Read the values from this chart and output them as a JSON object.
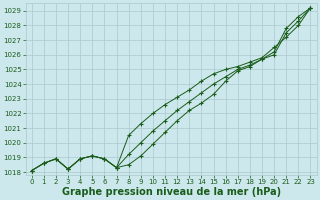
{
  "background_color": "#cde8ed",
  "grid_color": "#aac8cc",
  "line_color": "#1a5c1a",
  "xlabel": "Graphe pression niveau de la mer (hPa)",
  "xlabel_fontsize": 7,
  "yticks": [
    1018,
    1019,
    1020,
    1021,
    1022,
    1023,
    1024,
    1025,
    1026,
    1027,
    1028,
    1029
  ],
  "ylim": [
    1017.8,
    1029.5
  ],
  "xlim": [
    -0.5,
    23.5
  ],
  "xticks": [
    0,
    1,
    2,
    3,
    4,
    5,
    6,
    7,
    8,
    9,
    10,
    11,
    12,
    13,
    14,
    15,
    16,
    17,
    18,
    19,
    20,
    21,
    22,
    23
  ],
  "line1_x": [
    0,
    1,
    2,
    3,
    4,
    5,
    6,
    7,
    8,
    9,
    10,
    11,
    12,
    13,
    14,
    15,
    16,
    17,
    18,
    19,
    20,
    21,
    22,
    23
  ],
  "line1_y": [
    1018.1,
    1018.6,
    1018.9,
    1018.2,
    1018.9,
    1019.1,
    1018.9,
    1018.3,
    1018.5,
    1019.1,
    1019.9,
    1020.7,
    1021.5,
    1022.2,
    1022.7,
    1023.3,
    1024.2,
    1024.9,
    1025.2,
    1025.7,
    1026.0,
    1027.5,
    1028.3,
    1029.2
  ],
  "line2_x": [
    0,
    1,
    2,
    3,
    4,
    5,
    6,
    7,
    8,
    9,
    10,
    11,
    12,
    13,
    14,
    15,
    16,
    17,
    18,
    19,
    20,
    21,
    22,
    23
  ],
  "line2_y": [
    1018.1,
    1018.6,
    1018.9,
    1018.2,
    1018.9,
    1019.1,
    1018.9,
    1018.3,
    1020.5,
    1021.3,
    1022.0,
    1022.6,
    1023.1,
    1023.6,
    1024.2,
    1024.7,
    1025.0,
    1025.2,
    1025.5,
    1025.8,
    1026.5,
    1027.2,
    1028.0,
    1029.2
  ],
  "line3_x": [
    0,
    1,
    2,
    3,
    4,
    5,
    6,
    7,
    8,
    9,
    10,
    11,
    12,
    13,
    14,
    15,
    16,
    17,
    18,
    19,
    20,
    21,
    22,
    23
  ],
  "line3_y": [
    1018.1,
    1018.6,
    1018.9,
    1018.2,
    1018.9,
    1019.1,
    1018.9,
    1018.3,
    1019.2,
    1020.0,
    1020.8,
    1021.5,
    1022.2,
    1022.8,
    1023.4,
    1024.0,
    1024.5,
    1025.0,
    1025.3,
    1025.7,
    1026.2,
    1027.8,
    1028.6,
    1029.2
  ]
}
